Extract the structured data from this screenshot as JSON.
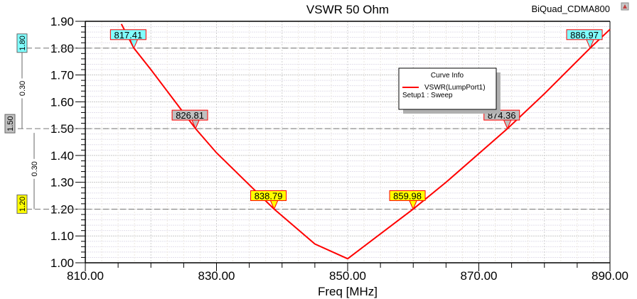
{
  "window": {
    "project_label": "BiQuad_CDMA800"
  },
  "chart_data": {
    "type": "line",
    "title": "VSWR 50 Ohm",
    "xlabel": "Freq [MHz]",
    "ylabel": "",
    "xlim": [
      810,
      890
    ],
    "ylim": [
      1.0,
      1.9
    ],
    "xticks": [
      "810.00",
      "830.00",
      "850.00",
      "870.00",
      "890.00"
    ],
    "yticks": [
      "1.00",
      "1.10",
      "1.20",
      "1.30",
      "1.40",
      "1.50",
      "1.60",
      "1.70",
      "1.80",
      "1.90"
    ],
    "grid": true,
    "series": [
      {
        "name": "VSWR(LumpPort1)",
        "color": "#ff0000",
        "x": [
          815.5,
          817.41,
          820,
          826.81,
          830,
          838.79,
          845,
          850,
          859.98,
          865,
          874.36,
          880,
          886.97,
          890
        ],
        "y": [
          1.89,
          1.8,
          1.72,
          1.5,
          1.41,
          1.2,
          1.07,
          1.015,
          1.2,
          1.3,
          1.5,
          1.63,
          1.8,
          1.87
        ]
      }
    ],
    "legend": {
      "title": "Curve Info",
      "entry": "VSWR(LumpPort1)",
      "sub": "Setup1 : Sweep",
      "placement": "top-right"
    },
    "markers": [
      {
        "label": "817.41",
        "x": 817.41,
        "y": 1.8,
        "color": "#80ffff"
      },
      {
        "label": "826.81",
        "x": 826.81,
        "y": 1.5,
        "color": "#c0c0c0"
      },
      {
        "label": "838.79",
        "x": 838.79,
        "y": 1.2,
        "color": "#ffff00"
      },
      {
        "label": "859.98",
        "x": 859.98,
        "y": 1.2,
        "color": "#ffff00"
      },
      {
        "label": "874.36",
        "x": 874.36,
        "y": 1.5,
        "color": "#c0c0c0"
      },
      {
        "label": "886.97",
        "x": 886.97,
        "y": 1.8,
        "color": "#80ffff"
      }
    ],
    "y_markers": [
      {
        "label": "1.80",
        "y": 1.8,
        "color": "#80ffff"
      },
      {
        "label": "1.50",
        "y": 1.5,
        "color": "#c0c0c0"
      },
      {
        "label": "1.20",
        "y": 1.2,
        "color": "#ffff00"
      }
    ],
    "deltas": [
      {
        "label": "0.30",
        "from": 1.8,
        "to": 1.5
      },
      {
        "label": "0.30",
        "from": 1.5,
        "to": 1.2
      }
    ]
  }
}
